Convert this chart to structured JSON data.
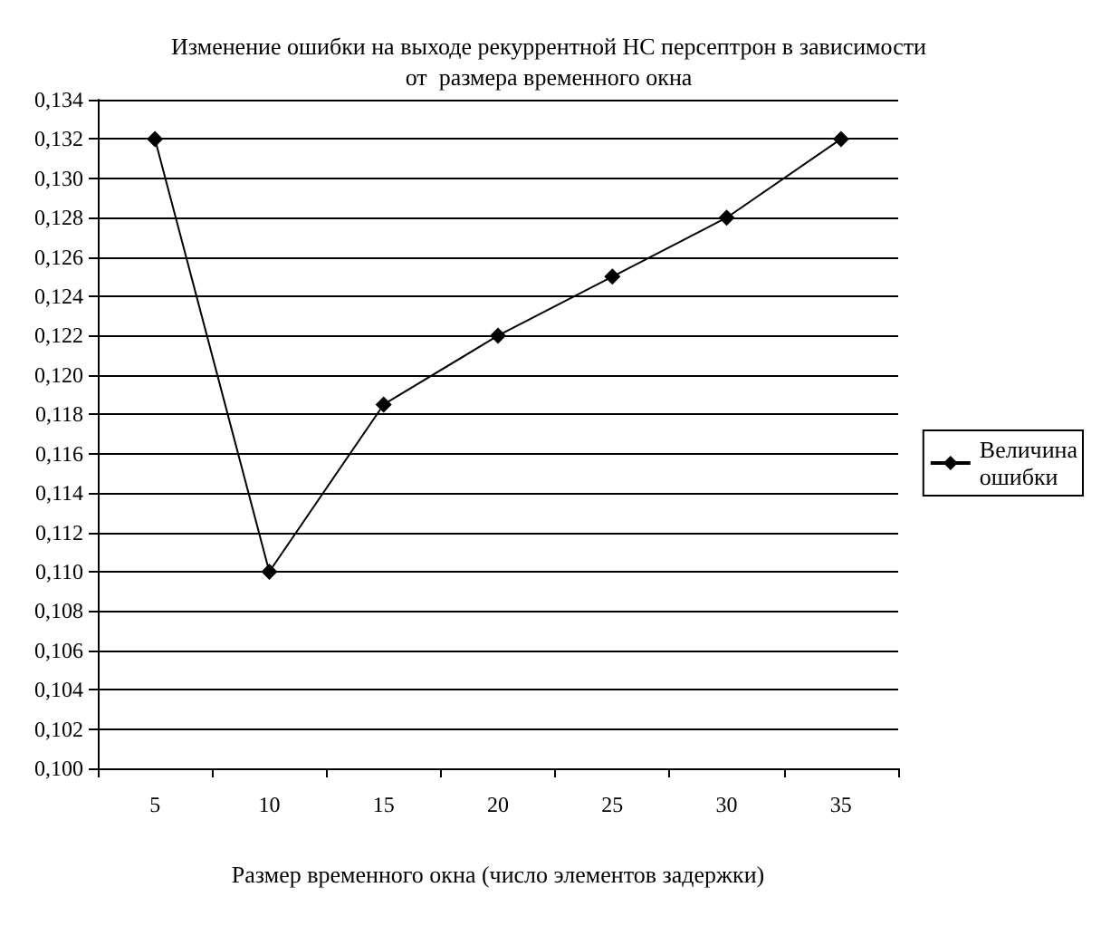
{
  "chart_data": {
    "type": "line",
    "title": "Изменение ошибки на выходе рекуррентной НС персептрон в зависимости\nот  размера временного окна",
    "xlabel": "Размер временного окна (число элементов задержки)",
    "categories": [
      "5",
      "10",
      "15",
      "20",
      "25",
      "30",
      "35"
    ],
    "series": [
      {
        "name": "Величина ошибки",
        "color": "#000000",
        "values": [
          0.132,
          0.11,
          0.1185,
          0.122,
          0.125,
          0.128,
          0.132
        ]
      }
    ],
    "ylim": [
      0.1,
      0.134
    ],
    "yticks": [
      {
        "value": 0.1,
        "label": "0,100"
      },
      {
        "value": 0.102,
        "label": "0,102"
      },
      {
        "value": 0.104,
        "label": "0,104"
      },
      {
        "value": 0.106,
        "label": "0,106"
      },
      {
        "value": 0.108,
        "label": "0,108"
      },
      {
        "value": 0.11,
        "label": "0,110"
      },
      {
        "value": 0.112,
        "label": "0,112"
      },
      {
        "value": 0.114,
        "label": "0,114"
      },
      {
        "value": 0.116,
        "label": "0,116"
      },
      {
        "value": 0.118,
        "label": "0,118"
      },
      {
        "value": 0.12,
        "label": "0,120"
      },
      {
        "value": 0.122,
        "label": "0,122"
      },
      {
        "value": 0.124,
        "label": "0,124"
      },
      {
        "value": 0.126,
        "label": "0,126"
      },
      {
        "value": 0.128,
        "label": "0,128"
      },
      {
        "value": 0.13,
        "label": "0,130"
      },
      {
        "value": 0.132,
        "label": "0,132"
      },
      {
        "value": 0.134,
        "label": "0,134"
      }
    ],
    "grid": "y",
    "legend": "right",
    "marker": "diamond",
    "line_style": "solid"
  }
}
